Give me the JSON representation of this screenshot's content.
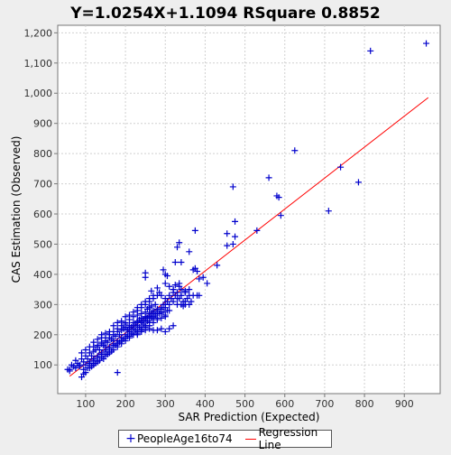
{
  "chart_data": {
    "type": "scatter",
    "title": "Y=1.0254X+1.1094    RSquare 0.8852",
    "xlabel": "SAR Prediction (Expected)",
    "ylabel": "CAS Estimation (Observed)",
    "xlim": [
      30,
      990
    ],
    "ylim": [
      5,
      1225
    ],
    "xticks": [
      100,
      200,
      300,
      400,
      500,
      600,
      700,
      800,
      900
    ],
    "yticks": [
      100,
      200,
      300,
      400,
      500,
      600,
      700,
      800,
      900,
      1000,
      1100,
      1200
    ],
    "ytick_labels": [
      "100",
      "200",
      "300",
      "400",
      "500",
      "600",
      "700",
      "800",
      "900",
      "1,000",
      "1,100",
      "1,200"
    ],
    "grid": true,
    "legend_position": "bottom",
    "series": [
      {
        "name": "PeopleAge16to74",
        "type": "scatter",
        "color": "#0000cc",
        "marker": "plus",
        "points": [
          [
            60,
            85
          ],
          [
            65,
            100
          ],
          [
            70,
            95
          ],
          [
            75,
            90
          ],
          [
            80,
            105
          ],
          [
            85,
            95
          ],
          [
            90,
            120
          ],
          [
            95,
            110
          ],
          [
            100,
            130
          ],
          [
            105,
            120
          ],
          [
            110,
            140
          ],
          [
            115,
            130
          ],
          [
            120,
            145
          ],
          [
            125,
            150
          ],
          [
            130,
            160
          ],
          [
            135,
            150
          ],
          [
            140,
            170
          ],
          [
            145,
            165
          ],
          [
            150,
            180
          ],
          [
            155,
            175
          ],
          [
            160,
            190
          ],
          [
            165,
            185
          ],
          [
            170,
            200
          ],
          [
            175,
            195
          ],
          [
            180,
            210
          ],
          [
            185,
            200
          ],
          [
            190,
            215
          ],
          [
            195,
            220
          ],
          [
            200,
            225
          ],
          [
            205,
            215
          ],
          [
            210,
            230
          ],
          [
            215,
            225
          ],
          [
            220,
            240
          ],
          [
            225,
            235
          ],
          [
            230,
            245
          ],
          [
            235,
            250
          ],
          [
            240,
            255
          ],
          [
            245,
            250
          ],
          [
            250,
            260
          ],
          [
            255,
            255
          ],
          [
            260,
            265
          ],
          [
            265,
            270
          ],
          [
            270,
            275
          ],
          [
            275,
            265
          ],
          [
            280,
            280
          ],
          [
            285,
            270
          ],
          [
            290,
            285
          ],
          [
            295,
            275
          ],
          [
            300,
            290
          ],
          [
            305,
            280
          ],
          [
            100,
            100
          ],
          [
            110,
            110
          ],
          [
            120,
            120
          ],
          [
            130,
            130
          ],
          [
            140,
            140
          ],
          [
            150,
            150
          ],
          [
            160,
            160
          ],
          [
            170,
            170
          ],
          [
            180,
            180
          ],
          [
            190,
            190
          ],
          [
            200,
            200
          ],
          [
            210,
            210
          ],
          [
            220,
            220
          ],
          [
            230,
            230
          ],
          [
            240,
            240
          ],
          [
            250,
            250
          ],
          [
            260,
            260
          ],
          [
            270,
            260
          ],
          [
            280,
            270
          ],
          [
            290,
            275
          ],
          [
            110,
            90
          ],
          [
            120,
            100
          ],
          [
            130,
            110
          ],
          [
            140,
            125
          ],
          [
            150,
            130
          ],
          [
            160,
            140
          ],
          [
            170,
            150
          ],
          [
            180,
            160
          ],
          [
            190,
            170
          ],
          [
            200,
            180
          ],
          [
            210,
            190
          ],
          [
            220,
            200
          ],
          [
            230,
            210
          ],
          [
            240,
            220
          ],
          [
            250,
            230
          ],
          [
            260,
            240
          ],
          [
            270,
            250
          ],
          [
            280,
            255
          ],
          [
            300,
            265
          ],
          [
            310,
            280
          ],
          [
            90,
            140
          ],
          [
            100,
            150
          ],
          [
            110,
            160
          ],
          [
            120,
            175
          ],
          [
            130,
            185
          ],
          [
            140,
            200
          ],
          [
            150,
            205
          ],
          [
            160,
            210
          ],
          [
            170,
            230
          ],
          [
            180,
            240
          ],
          [
            190,
            245
          ],
          [
            200,
            260
          ],
          [
            210,
            265
          ],
          [
            220,
            275
          ],
          [
            230,
            280
          ],
          [
            240,
            290
          ],
          [
            250,
            300
          ],
          [
            260,
            310
          ],
          [
            270,
            320
          ],
          [
            280,
            330
          ],
          [
            75,
            115
          ],
          [
            85,
            100
          ],
          [
            95,
            85
          ],
          [
            105,
            90
          ],
          [
            115,
            95
          ],
          [
            125,
            105
          ],
          [
            135,
            115
          ],
          [
            145,
            120
          ],
          [
            155,
            135
          ],
          [
            165,
            145
          ],
          [
            175,
            165
          ],
          [
            185,
            175
          ],
          [
            195,
            185
          ],
          [
            205,
            195
          ],
          [
            215,
            205
          ],
          [
            225,
            215
          ],
          [
            235,
            225
          ],
          [
            245,
            235
          ],
          [
            255,
            245
          ],
          [
            265,
            255
          ],
          [
            90,
            60
          ],
          [
            100,
            75
          ],
          [
            180,
            75
          ],
          [
            60,
            80
          ],
          [
            55,
            85
          ],
          [
            95,
            70
          ],
          [
            120,
            160
          ],
          [
            140,
            190
          ],
          [
            150,
            160
          ],
          [
            170,
            180
          ],
          [
            200,
            240
          ],
          [
            210,
            250
          ],
          [
            220,
            260
          ],
          [
            230,
            265
          ],
          [
            240,
            270
          ],
          [
            250,
            275
          ],
          [
            255,
            285
          ],
          [
            260,
            290
          ],
          [
            265,
            295
          ],
          [
            275,
            300
          ],
          [
            160,
            200
          ],
          [
            170,
            210
          ],
          [
            180,
            220
          ],
          [
            190,
            230
          ],
          [
            200,
            235
          ],
          [
            150,
            190
          ],
          [
            140,
            175
          ],
          [
            130,
            165
          ],
          [
            210,
            220
          ],
          [
            220,
            230
          ],
          [
            230,
            240
          ],
          [
            240,
            245
          ],
          [
            250,
            255
          ],
          [
            260,
            270
          ],
          [
            270,
            280
          ],
          [
            280,
            285
          ],
          [
            290,
            290
          ],
          [
            300,
            300
          ],
          [
            310,
            300
          ],
          [
            320,
            310
          ],
          [
            280,
            250
          ],
          [
            290,
            255
          ],
          [
            300,
            260
          ],
          [
            270,
            240
          ],
          [
            260,
            230
          ],
          [
            250,
            225
          ],
          [
            240,
            215
          ],
          [
            230,
            205
          ],
          [
            220,
            200
          ],
          [
            210,
            195
          ],
          [
            200,
            190
          ],
          [
            190,
            180
          ],
          [
            180,
            170
          ],
          [
            170,
            165
          ],
          [
            160,
            155
          ],
          [
            150,
            145
          ],
          [
            140,
            135
          ],
          [
            130,
            125
          ],
          [
            120,
            115
          ],
          [
            110,
            105
          ],
          [
            300,
            210
          ],
          [
            290,
            220
          ],
          [
            280,
            215
          ],
          [
            270,
            215
          ],
          [
            260,
            220
          ],
          [
            250,
            215
          ],
          [
            240,
            210
          ],
          [
            230,
            200
          ],
          [
            310,
            220
          ],
          [
            320,
            230
          ],
          [
            330,
            320
          ],
          [
            340,
            330
          ],
          [
            350,
            340
          ],
          [
            360,
            330
          ],
          [
            345,
            310
          ],
          [
            335,
            320
          ],
          [
            325,
            330
          ],
          [
            315,
            320
          ],
          [
            305,
            310
          ],
          [
            295,
            300
          ],
          [
            320,
            340
          ],
          [
            330,
            340
          ],
          [
            340,
            350
          ],
          [
            350,
            345
          ],
          [
            360,
            350
          ],
          [
            300,
            320
          ],
          [
            310,
            330
          ],
          [
            320,
            350
          ],
          [
            340,
            330
          ],
          [
            350,
            310
          ],
          [
            355,
            320
          ],
          [
            360,
            300
          ],
          [
            365,
            310
          ],
          [
            370,
            330
          ],
          [
            380,
            330
          ],
          [
            385,
            330
          ],
          [
            350,
            300
          ],
          [
            345,
            295
          ],
          [
            340,
            300
          ],
          [
            330,
            300
          ],
          [
            250,
            390
          ],
          [
            250,
            405
          ],
          [
            295,
            415
          ],
          [
            300,
            400
          ],
          [
            305,
            395
          ],
          [
            330,
            490
          ],
          [
            335,
            505
          ],
          [
            325,
            440
          ],
          [
            325,
            365
          ],
          [
            320,
            350
          ],
          [
            335,
            360
          ],
          [
            335,
            370
          ],
          [
            340,
            440
          ],
          [
            360,
            475
          ],
          [
            370,
            415
          ],
          [
            375,
            420
          ],
          [
            380,
            410
          ],
          [
            375,
            545
          ],
          [
            385,
            385
          ],
          [
            395,
            390
          ],
          [
            405,
            370
          ],
          [
            430,
            430
          ],
          [
            455,
            535
          ],
          [
            455,
            495
          ],
          [
            470,
            500
          ],
          [
            475,
            525
          ],
          [
            475,
            575
          ],
          [
            470,
            690
          ],
          [
            530,
            545
          ],
          [
            560,
            720
          ],
          [
            580,
            660
          ],
          [
            585,
            655
          ],
          [
            590,
            595
          ],
          [
            625,
            810
          ],
          [
            710,
            610
          ],
          [
            740,
            755
          ],
          [
            785,
            705
          ],
          [
            815,
            1140
          ],
          [
            955,
            1165
          ],
          [
            265,
            345
          ],
          [
            280,
            355
          ],
          [
            285,
            340
          ],
          [
            300,
            370
          ],
          [
            310,
            360
          ],
          [
            290,
            330
          ],
          [
            270,
            330
          ],
          [
            260,
            320
          ],
          [
            250,
            310
          ],
          [
            240,
            300
          ],
          [
            230,
            290
          ]
        ]
      },
      {
        "name": "Regression Line",
        "type": "line",
        "color": "#ff0000",
        "x": [
          60,
          960
        ],
        "y": [
          62.6,
          985.5
        ]
      }
    ]
  },
  "legend": {
    "items": [
      {
        "label": "PeopleAge16to74",
        "symbol": "+"
      },
      {
        "label": "Regression Line"
      }
    ]
  }
}
